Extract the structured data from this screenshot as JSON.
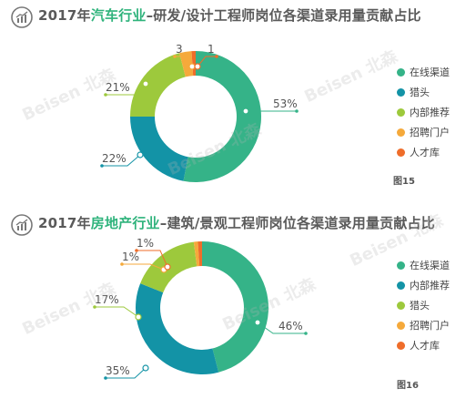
{
  "watermark": "Beisen 北森",
  "chart_data": [
    {
      "type": "pie",
      "title_parts": [
        "2017年",
        "汽车行业",
        "–研发/设计工程师岗位各渠道录用量贡献占比"
      ],
      "figure_label": "图15",
      "slices": [
        {
          "name": "在线渠道",
          "value": 53,
          "label": "53%",
          "color": "#35b388"
        },
        {
          "name": "猎头",
          "value": 22,
          "label": "22%",
          "color": "#1393a6"
        },
        {
          "name": "内部推荐",
          "value": 21,
          "label": "21%",
          "color": "#9dc93c"
        },
        {
          "name": "招聘门户",
          "value": 3,
          "label": "3",
          "color": "#f5a93b"
        },
        {
          "name": "人才库",
          "value": 1,
          "label": "1",
          "color": "#ef6d2a"
        }
      ],
      "legend": [
        "在线渠道",
        "猎头",
        "内部推荐",
        "招聘门户",
        "人才库"
      ]
    },
    {
      "type": "pie",
      "title_parts": [
        "2017年",
        "房地产行业",
        "–建筑/景观工程师岗位各渠道录用量贡献占比"
      ],
      "figure_label": "图16",
      "slices": [
        {
          "name": "在线渠道",
          "value": 46,
          "label": "46%",
          "color": "#35b388"
        },
        {
          "name": "内部推荐",
          "value": 35,
          "label": "35%",
          "color": "#1393a6"
        },
        {
          "name": "猎头",
          "value": 17,
          "label": "17%",
          "color": "#9dc93c"
        },
        {
          "name": "招聘门户",
          "value": 1,
          "label": "1%",
          "color": "#f5a93b"
        },
        {
          "name": "人才库",
          "value": 1,
          "label": "1%",
          "color": "#ef6d2a"
        }
      ],
      "legend": [
        "在线渠道",
        "内部推荐",
        "猎头",
        "招聘门户",
        "人才库"
      ]
    }
  ]
}
